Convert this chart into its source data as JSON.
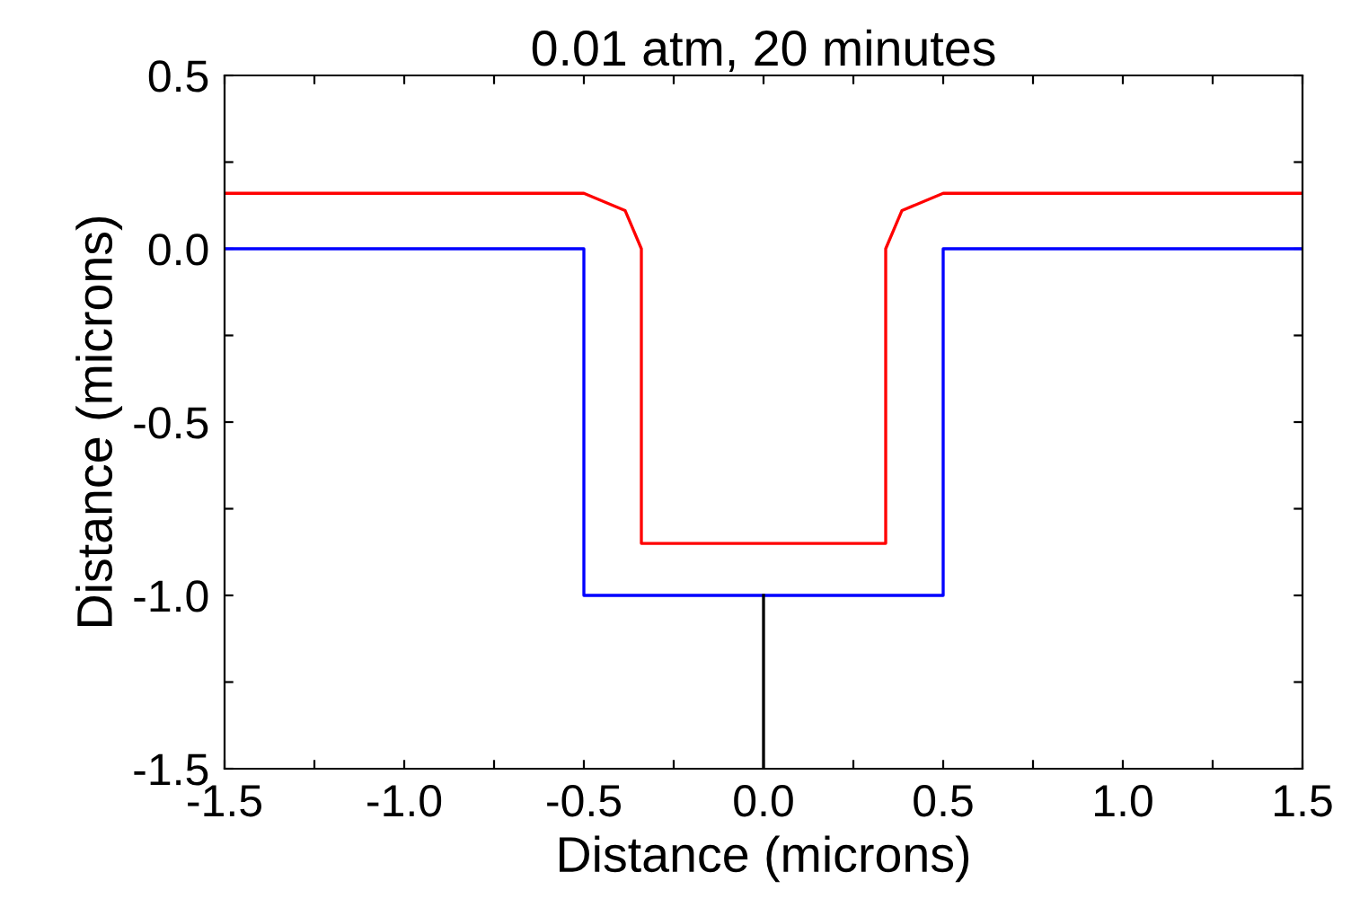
{
  "chart_data": {
    "type": "line",
    "title": "0.01 atm, 20 minutes",
    "xlabel": "Distance (microns)",
    "ylabel": "Distance (microns)",
    "xlim": [
      -1.5,
      1.5
    ],
    "ylim": [
      -1.5,
      0.5
    ],
    "xticks": [
      {
        "value": -1.5,
        "label": "-1.5"
      },
      {
        "value": -1.25,
        "label": null
      },
      {
        "value": -1.0,
        "label": "-1.0"
      },
      {
        "value": -0.75,
        "label": null
      },
      {
        "value": -0.5,
        "label": "-0.5"
      },
      {
        "value": -0.25,
        "label": null
      },
      {
        "value": 0.0,
        "label": "0.0"
      },
      {
        "value": 0.25,
        "label": null
      },
      {
        "value": 0.5,
        "label": "0.5"
      },
      {
        "value": 0.75,
        "label": null
      },
      {
        "value": 1.0,
        "label": "1.0"
      },
      {
        "value": 1.25,
        "label": null
      },
      {
        "value": 1.5,
        "label": "1.5"
      }
    ],
    "yticks": [
      {
        "value": -1.5,
        "label": "-1.5"
      },
      {
        "value": -1.25,
        "label": null
      },
      {
        "value": -1.0,
        "label": "-1.0"
      },
      {
        "value": -0.75,
        "label": null
      },
      {
        "value": -0.5,
        "label": "-0.5"
      },
      {
        "value": -0.25,
        "label": null
      },
      {
        "value": 0.0,
        "label": "0.0"
      },
      {
        "value": 0.25,
        "label": null
      },
      {
        "value": 0.5,
        "label": "0.5"
      }
    ],
    "grid": false,
    "marker": "none",
    "line_style": "solid",
    "series": [
      {
        "color": "#0000ff",
        "x": [
          -1.5,
          -0.5,
          -0.5,
          0.5,
          0.5,
          1.5
        ],
        "values": [
          0.0,
          0.0,
          -1.0,
          -1.0,
          0.0,
          0.0
        ]
      },
      {
        "color": "#ff0000",
        "x": [
          -1.5,
          -0.5,
          -0.385,
          -0.34,
          -0.34,
          0.34,
          0.34,
          0.385,
          0.5,
          1.5
        ],
        "values": [
          0.16,
          0.16,
          0.11,
          0.0,
          -0.85,
          -0.85,
          0.0,
          0.11,
          0.16,
          0.16
        ]
      },
      {
        "color": "#000000",
        "x": [
          0.0,
          0.0
        ],
        "values": [
          -1.0,
          -1.5
        ]
      }
    ]
  }
}
